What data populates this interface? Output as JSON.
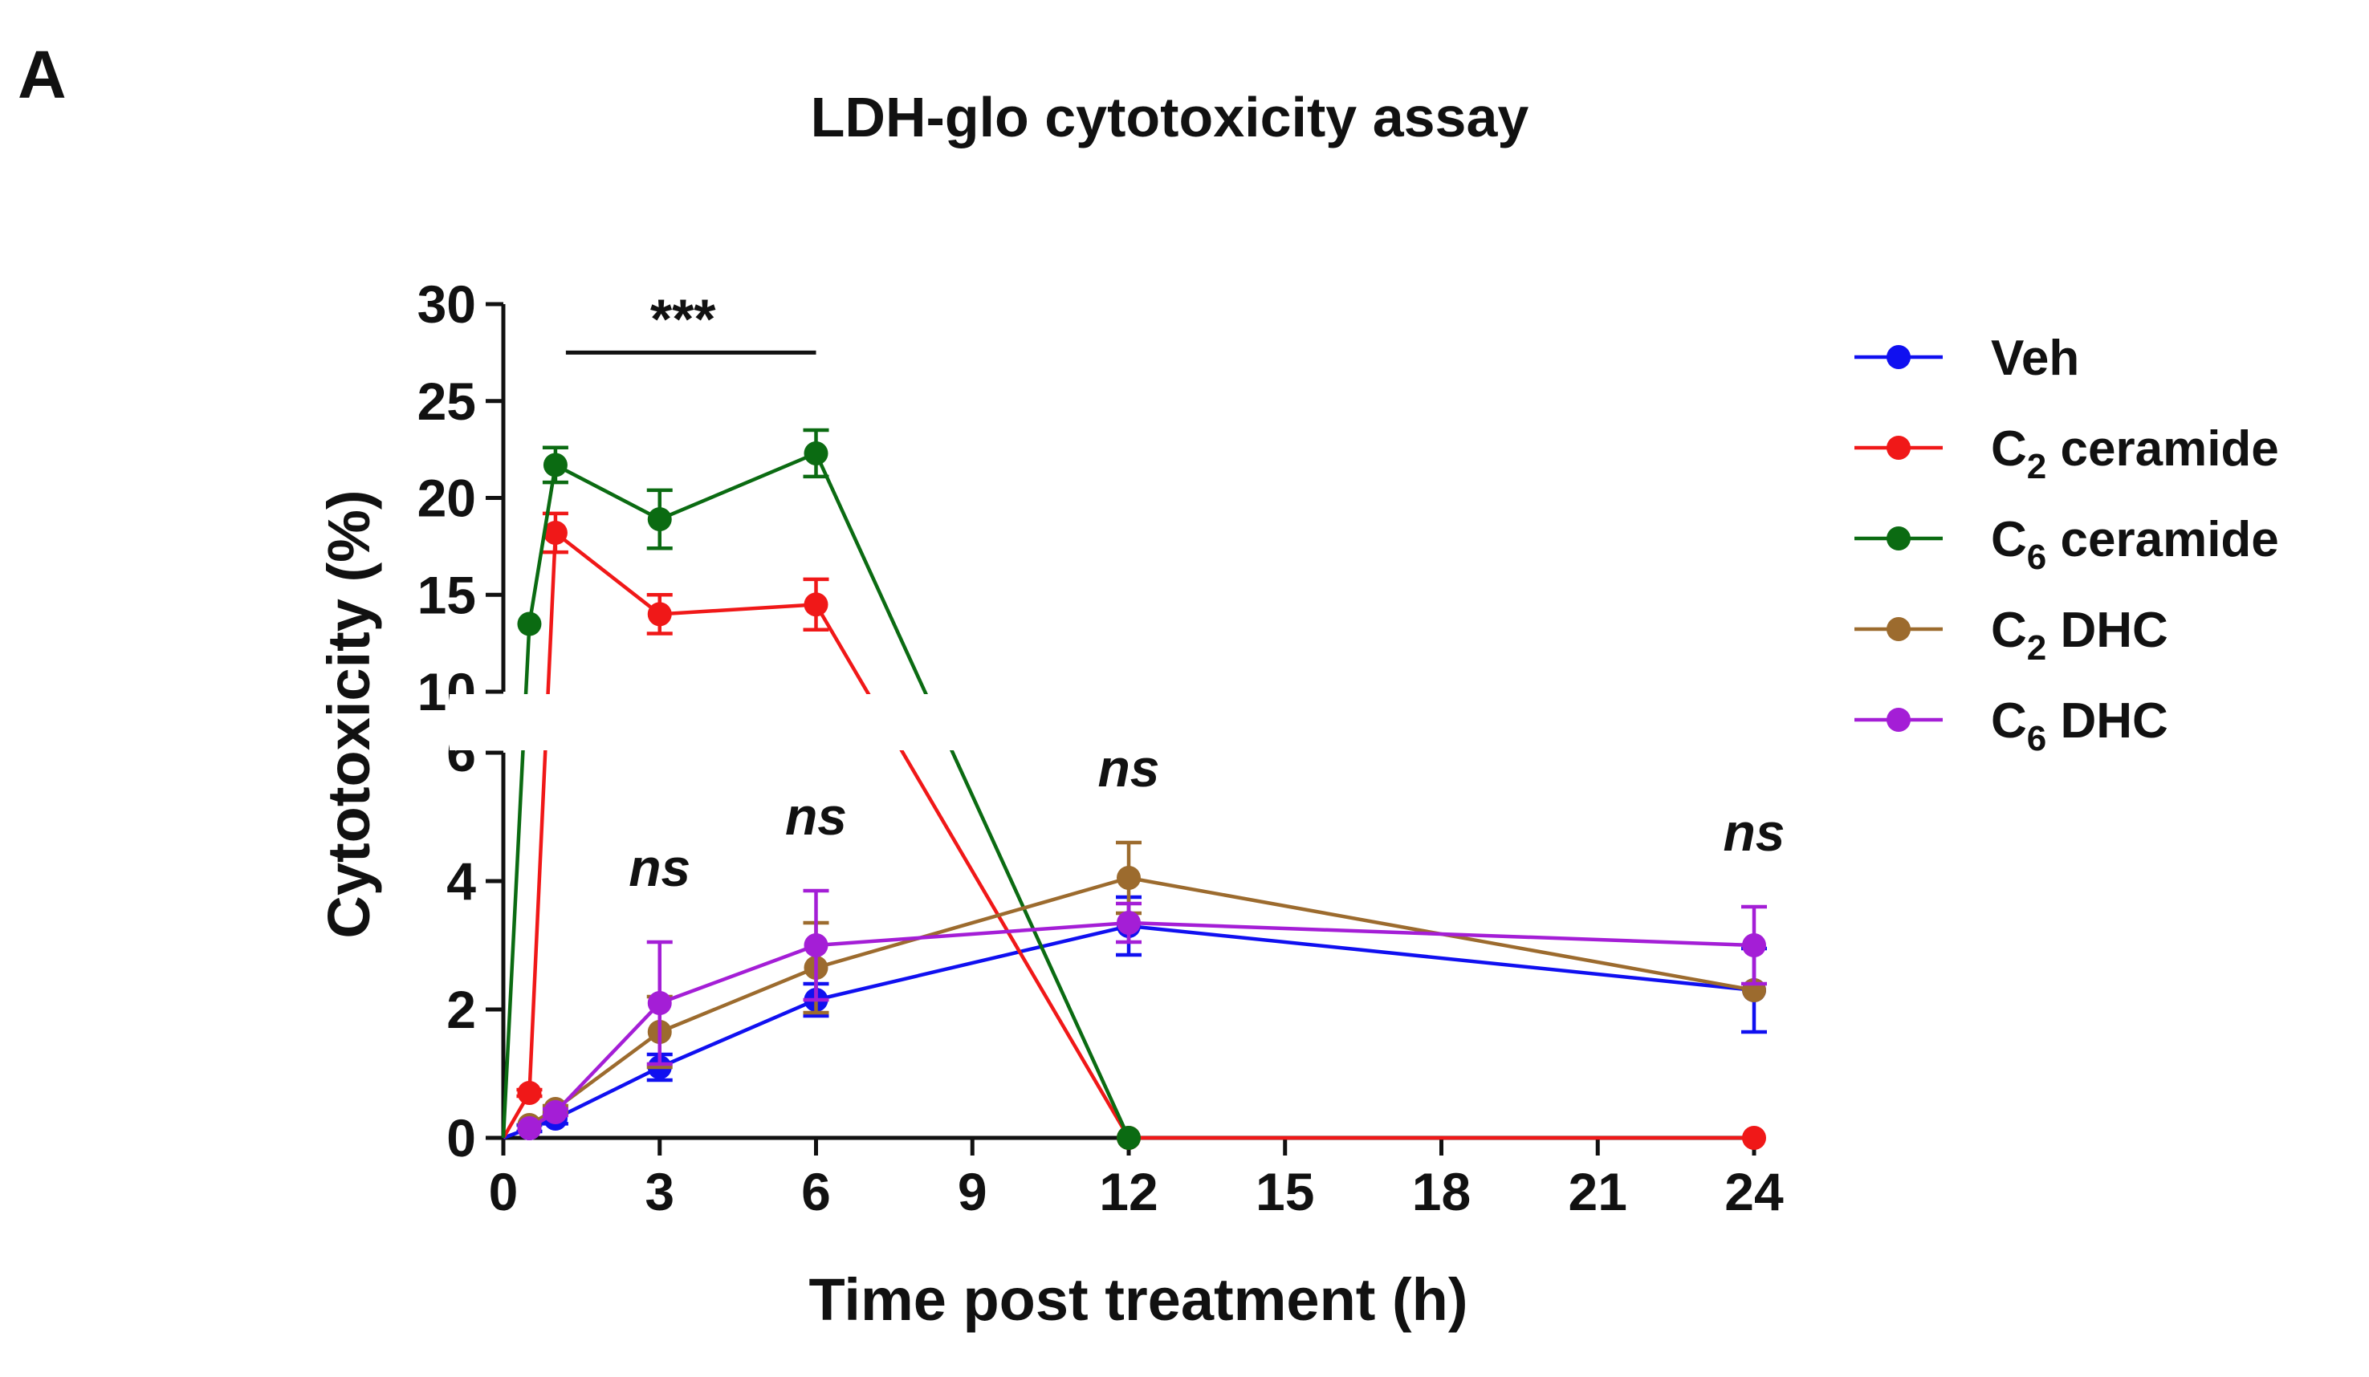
{
  "panel_label": "A",
  "chart_data": {
    "type": "line",
    "title": "LDH-glo cytotoxicity assay",
    "xlabel": "Time post treatment (h)",
    "ylabel": "Cytotoxicity (%)",
    "x_ticks": [
      0,
      3,
      6,
      9,
      12,
      15,
      18,
      21,
      24
    ],
    "xlim": [
      0,
      24
    ],
    "y_axis_break": {
      "lower_range": [
        0,
        6
      ],
      "upper_range": [
        10,
        30
      ]
    },
    "y_ticks_lower": [
      0,
      2,
      4,
      6
    ],
    "y_ticks_upper": [
      10,
      15,
      20,
      25,
      30
    ],
    "grid": false,
    "legend_position": "right",
    "series": [
      {
        "name": "Veh",
        "name_main": "Veh",
        "name_sub": "",
        "name_rest": "",
        "color": "#1010f0",
        "x": [
          0,
          0.5,
          1,
          3,
          6,
          12,
          24
        ],
        "y": [
          0,
          0.15,
          0.3,
          1.1,
          2.15,
          3.3,
          2.3
        ],
        "err": [
          0,
          0.05,
          0.08,
          0.2,
          0.25,
          0.45,
          0.65
        ]
      },
      {
        "name": "C2 ceramide",
        "name_main": "C",
        "name_sub": "2",
        "name_rest": " ceramide",
        "color": "#f01818",
        "x": [
          0,
          0.5,
          1,
          3,
          6,
          12,
          24
        ],
        "y": [
          0,
          0.7,
          18.2,
          14.0,
          14.5,
          0,
          0
        ],
        "err": [
          0,
          0.05,
          1.0,
          1.0,
          1.3,
          0,
          0
        ]
      },
      {
        "name": "C6 ceramide",
        "name_main": "C",
        "name_sub": "6",
        "name_rest": " ceramide",
        "color": "#0b6b12",
        "x": [
          0,
          0.5,
          1,
          3,
          6,
          12
        ],
        "y": [
          0,
          13.5,
          21.7,
          18.9,
          22.3,
          0
        ],
        "err": [
          0,
          0,
          0.9,
          1.5,
          1.2,
          0
        ]
      },
      {
        "name": "C2 DHC",
        "name_main": "C",
        "name_sub": "2",
        "name_rest": " DHC",
        "color": "#9c6b2e",
        "x": [
          0.5,
          1,
          3,
          6,
          12,
          24
        ],
        "y": [
          0.2,
          0.45,
          1.65,
          2.65,
          4.05,
          2.3
        ],
        "err": [
          0,
          0.05,
          0.55,
          0.7,
          0.55,
          0
        ]
      },
      {
        "name": "C6 DHC",
        "name_main": "C",
        "name_sub": "6",
        "name_rest": " DHC",
        "color": "#a41ed6",
        "x": [
          0.5,
          1,
          3,
          6,
          12,
          24
        ],
        "y": [
          0.15,
          0.4,
          2.1,
          3.0,
          3.35,
          3.0
        ],
        "err": [
          0,
          0.05,
          0.95,
          0.85,
          0.3,
          0.6
        ]
      }
    ],
    "annotations": [
      {
        "text": "***",
        "x_from": 1.2,
        "x_to": 6
      },
      {
        "text": "ns",
        "x": 3
      },
      {
        "text": "ns",
        "x": 6
      },
      {
        "text": "ns",
        "x": 12
      },
      {
        "text": "ns",
        "x": 24
      }
    ]
  }
}
